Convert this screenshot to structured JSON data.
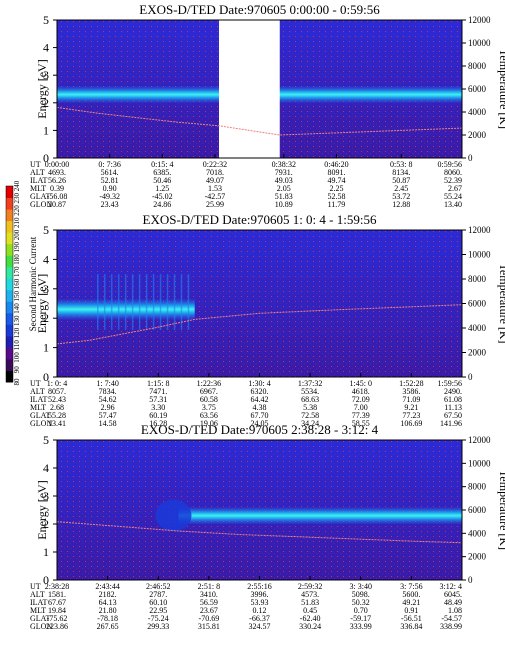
{
  "colorbar": {
    "label": "Second Harmonic Current",
    "ticks": [
      "80",
      "90",
      "100",
      "110",
      "120",
      "130",
      "140",
      "150",
      "160",
      "170",
      "180",
      "190",
      "200",
      "210",
      "220",
      "230",
      "240"
    ],
    "colors": [
      "#000000",
      "#3a0a5a",
      "#5a0a8a",
      "#2020b0",
      "#1a3ad8",
      "#1a5ae8",
      "#1a86f0",
      "#20b0f0",
      "#20d8e0",
      "#30e8a0",
      "#40e040",
      "#90e020",
      "#e0e020",
      "#f0c020",
      "#f08020",
      "#f04020",
      "#e00000"
    ]
  },
  "chart_data": [
    {
      "type": "heatmap",
      "title": "EXOS-D/TED   Date:970605  0:00:00 - 0:59:56",
      "ylabel": "Energy [eV]",
      "ylabel_right": "Temperature [K]",
      "ylim": [
        0,
        5
      ],
      "yticks": [
        "0",
        "1",
        "2",
        "3",
        "4",
        "5"
      ],
      "ylim_right": [
        0,
        12000
      ],
      "yticks_right": [
        "0",
        "2000",
        "4000",
        "6000",
        "8000",
        "10000",
        "12000"
      ],
      "data_gap": [
        0.4,
        0.55
      ],
      "band": {
        "energy_center": 2.3,
        "energy_halfwidth": 0.3
      },
      "temperature_series": [
        [
          0,
          4400
        ],
        [
          0.1,
          3900
        ],
        [
          0.2,
          3500
        ],
        [
          0.3,
          3100
        ],
        [
          0.4,
          2800
        ],
        [
          0.55,
          2000
        ],
        [
          0.7,
          2200
        ],
        [
          0.85,
          2400
        ],
        [
          1.0,
          2600
        ]
      ],
      "labels_table": {
        "row_names": [
          "UT",
          "ALT",
          "ILAT",
          "MLT",
          "GLAT",
          "GLON"
        ],
        "columns": [
          [
            "0:00:00",
            "4693.",
            "56.26",
            "0.39",
            "-56.08",
            "20.87"
          ],
          [
            "0: 7:36",
            "5614.",
            "52.81",
            "0.90",
            "-49.32",
            "23.43"
          ],
          [
            "0:15: 4",
            "6385.",
            "50.46",
            "1.25",
            "-45.02",
            "24.86"
          ],
          [
            "0:22:32",
            "7018.",
            "49.07",
            "1.53",
            "-42.57",
            "25.99"
          ],
          [
            "0:38:32",
            "7931.",
            "49.03",
            "2.05",
            "51.83",
            "10.89"
          ],
          [
            "0:46:20",
            "8091.",
            "49.74",
            "2.25",
            "52.58",
            "11.79"
          ],
          [
            "0:53: 8",
            "8134.",
            "50.87",
            "2.45",
            "53.72",
            "12.88"
          ],
          [
            "0:59:56",
            "8060.",
            "52.39",
            "2.67",
            "55.24",
            "13.40"
          ]
        ]
      }
    },
    {
      "type": "heatmap",
      "title": "EXOS-D/TED   Date:970605  1: 0: 4 - 1:59:56",
      "ylabel": "Energy [eV]",
      "ylabel_right": "Temperature [K]",
      "ylim": [
        0,
        5
      ],
      "yticks": [
        "0",
        "1",
        "2",
        "3",
        "4",
        "5"
      ],
      "ylim_right": [
        0,
        12000
      ],
      "yticks_right": [
        "0",
        "2000",
        "4000",
        "6000",
        "8000",
        "10000",
        "12000"
      ],
      "band": {
        "energy_center": 2.3,
        "energy_halfwidth": 0.35,
        "x_end": 0.34
      },
      "temperature_series": [
        [
          0,
          2700
        ],
        [
          0.08,
          3000
        ],
        [
          0.16,
          3500
        ],
        [
          0.24,
          4000
        ],
        [
          0.34,
          4700
        ],
        [
          0.5,
          5200
        ],
        [
          0.7,
          5500
        ],
        [
          0.85,
          5700
        ],
        [
          1.0,
          5900
        ]
      ],
      "labels_table": {
        "row_names": [
          "UT",
          "ALT",
          "ILAT",
          "MLT",
          "GLAT",
          "GLON"
        ],
        "columns": [
          [
            "1: 0: 4",
            "8057.",
            "52.43",
            "2.68",
            "55.28",
            "13.41"
          ],
          [
            "1: 7:40",
            "7834.",
            "54.62",
            "2.96",
            "57.47",
            "14.58"
          ],
          [
            "1:15: 8",
            "7471.",
            "57.31",
            "3.30",
            "60.19",
            "16.28"
          ],
          [
            "1:22:36",
            "6967.",
            "60.58",
            "3.75",
            "63.56",
            "19.06"
          ],
          [
            "1:30: 4",
            "6320.",
            "64.42",
            "4.38",
            "67.70",
            "24.05"
          ],
          [
            "1:37:32",
            "5534.",
            "68.63",
            "5.38",
            "72.58",
            "34.24"
          ],
          [
            "1:45: 0",
            "4618.",
            "72.09",
            "7.00",
            "77.39",
            "58.55"
          ],
          [
            "1:52:28",
            "3586.",
            "71.09",
            "9.21",
            "77.23",
            "106.69"
          ],
          [
            "1:59:56",
            "2490.",
            "61.08",
            "11.13",
            "67.50",
            "141.96"
          ]
        ]
      }
    },
    {
      "type": "heatmap",
      "title": "EXOS-D/TED   Date:970605  2:38:28 - 3:12: 4",
      "ylabel": "Energy [eV]",
      "ylabel_right": "Temperature [K]",
      "ylim": [
        0,
        5
      ],
      "yticks": [
        "0",
        "1",
        "2",
        "3",
        "4",
        "5"
      ],
      "ylim_right": [
        0,
        12000
      ],
      "yticks_right": [
        "0",
        "2000",
        "4000",
        "6000",
        "8000",
        "10000",
        "12000"
      ],
      "band": {
        "energy_center": 2.3,
        "energy_halfwidth": 0.3,
        "x_start": 0.3
      },
      "temperature_series": [
        [
          0,
          5000
        ],
        [
          0.15,
          4600
        ],
        [
          0.3,
          4200
        ],
        [
          0.45,
          3900
        ],
        [
          0.6,
          3700
        ],
        [
          0.75,
          3500
        ],
        [
          0.9,
          3300
        ],
        [
          1.0,
          3200
        ]
      ],
      "labels_table": {
        "row_names": [
          "UT",
          "ALT",
          "ILAT",
          "MLT",
          "GLAT",
          "GLON"
        ],
        "columns": [
          [
            "2:38:28",
            "1581.",
            "67.67",
            "19.84",
            "-75.62",
            "223.86"
          ],
          [
            "2:43:44",
            "2182.",
            "64.13",
            "21.80",
            "-78.18",
            "267.65"
          ],
          [
            "2:46:52",
            "2787.",
            "60.10",
            "22.95",
            "-75.24",
            "299.33"
          ],
          [
            "2:51: 8",
            "3410.",
            "56.59",
            "23.67",
            "-70.69",
            "315.81"
          ],
          [
            "2:55:16",
            "3996.",
            "53.93",
            "0.12",
            "-66.37",
            "324.57"
          ],
          [
            "2:59:32",
            "4573.",
            "51.83",
            "0.45",
            "-62.40",
            "330.24"
          ],
          [
            "3: 3:40",
            "5098.",
            "50.32",
            "0.70",
            "-59.17",
            "333.99"
          ],
          [
            "3: 7:56",
            "5600.",
            "49.21",
            "0.91",
            "-56.51",
            "336.84"
          ],
          [
            "3:12: 4",
            "6045.",
            "48.49",
            "1.08",
            "-54.57",
            "338.99"
          ]
        ]
      }
    }
  ]
}
